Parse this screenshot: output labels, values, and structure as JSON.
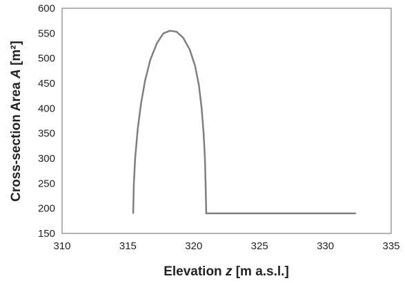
{
  "chart_data": {
    "type": "line",
    "xlabel_parts": [
      {
        "text": "Elevation ",
        "italic": false
      },
      {
        "text": "z",
        "italic": true
      },
      {
        "text": " [m a.s.l.]",
        "italic": false
      }
    ],
    "ylabel_parts": [
      {
        "text": "Cross-section Area ",
        "italic": false
      },
      {
        "text": "A",
        "italic": true
      },
      {
        "text": " [m²]",
        "italic": false
      }
    ],
    "xlim": [
      310,
      335
    ],
    "ylim": [
      150,
      600
    ],
    "x_ticks": [
      "310",
      "315",
      "320",
      "325",
      "330",
      "335"
    ],
    "y_ticks": [
      "150",
      "200",
      "250",
      "300",
      "350",
      "400",
      "450",
      "500",
      "550",
      "600"
    ],
    "grid": false,
    "line_color": "#7f7f7f",
    "series": [
      {
        "points": [
          [
            315.4,
            190
          ],
          [
            315.45,
            250
          ],
          [
            315.55,
            300
          ],
          [
            315.75,
            360
          ],
          [
            316.0,
            410
          ],
          [
            316.3,
            455
          ],
          [
            316.7,
            497
          ],
          [
            317.2,
            530
          ],
          [
            317.7,
            550
          ],
          [
            318.2,
            555
          ],
          [
            318.7,
            553
          ],
          [
            319.2,
            541
          ],
          [
            319.7,
            517
          ],
          [
            320.1,
            485
          ],
          [
            320.4,
            445
          ],
          [
            320.6,
            400
          ],
          [
            320.75,
            350
          ],
          [
            320.85,
            300
          ],
          [
            320.9,
            250
          ],
          [
            320.95,
            190
          ],
          [
            332.3,
            190
          ]
        ]
      }
    ]
  }
}
